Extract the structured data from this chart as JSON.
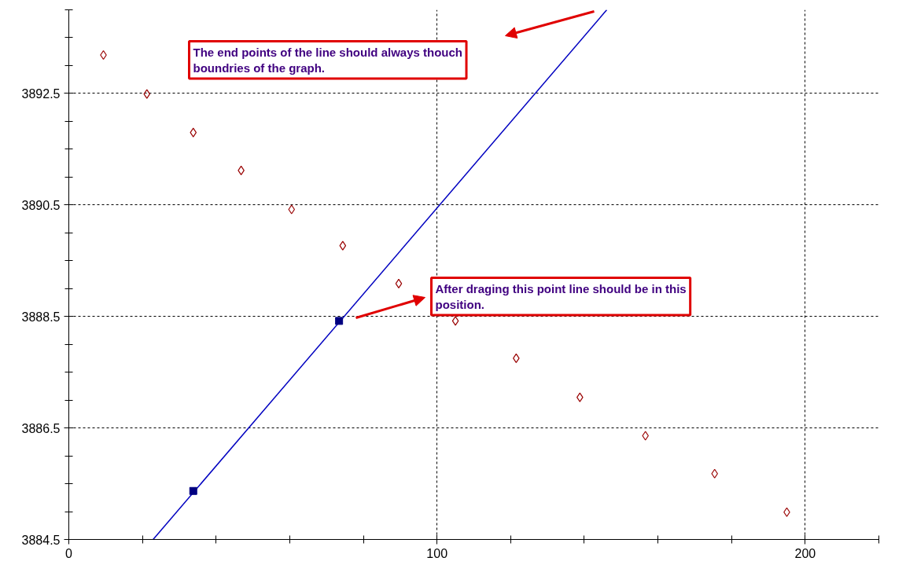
{
  "chart_data": {
    "type": "scatter",
    "xlim": [
      0,
      220
    ],
    "xticks": [
      0,
      100,
      200
    ],
    "ylim": [
      3884.5,
      3894
    ],
    "yticks": [
      3884.5,
      3886.5,
      3888.5,
      3890.5,
      3892.5
    ],
    "grid": true,
    "marker": "diamond",
    "series": [
      {
        "color": "#990000",
        "x": [
          9.4,
          21.2,
          33.8,
          46.8,
          60.5,
          74.4,
          89.6,
          105,
          121.5,
          138.8,
          156.6,
          175.4,
          195
        ],
        "values": [
          3893.19,
          3892.49,
          3891.8,
          3891.12,
          3890.42,
          3889.77,
          3889.09,
          3888.42,
          3887.75,
          3887.05,
          3886.36,
          3885.68,
          3884.99
        ]
      },
      {
        "type": "line",
        "color": "#0000c0",
        "marker": "none",
        "line_style": "solid",
        "x": [
          22.9,
          146.1
        ],
        "values": [
          3884.5,
          3894
        ]
      },
      {
        "type": "scatter",
        "color": "#000080",
        "marker": "square",
        "x": [
          33.8,
          73.4
        ],
        "values": [
          3885.37,
          3888.42
        ]
      }
    ],
    "annotations": [
      "The end points of the line should always thouch boundries of the graph.",
      "After draging this point line should be in this position."
    ]
  }
}
